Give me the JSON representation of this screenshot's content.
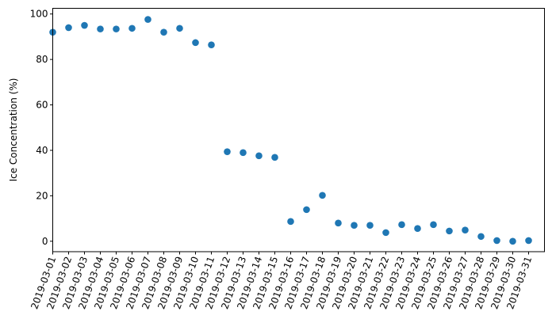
{
  "chart_data": {
    "type": "scatter",
    "title": "",
    "xlabel": "",
    "ylabel": "Ice Concentration (%)",
    "x": [
      "2019-03-01",
      "2019-03-02",
      "2019-03-03",
      "2019-03-04",
      "2019-03-05",
      "2019-03-06",
      "2019-03-07",
      "2019-03-08",
      "2019-03-09",
      "2019-03-10",
      "2019-03-11",
      "2019-03-12",
      "2019-03-13",
      "2019-03-14",
      "2019-03-15",
      "2019-03-16",
      "2019-03-17",
      "2019-03-18",
      "2019-03-19",
      "2019-03-20",
      "2019-03-21",
      "2019-03-22",
      "2019-03-23",
      "2019-03-24",
      "2019-03-25",
      "2019-03-26",
      "2019-03-27",
      "2019-03-28",
      "2019-03-29",
      "2019-03-30",
      "2019-03-31"
    ],
    "y": [
      92.0,
      94.0,
      95.0,
      93.4,
      93.4,
      93.7,
      97.6,
      92.0,
      93.7,
      87.4,
      86.4,
      39.4,
      39.0,
      37.6,
      36.9,
      8.7,
      13.9,
      20.2,
      8.0,
      7.0,
      7.0,
      3.8,
      7.3,
      5.6,
      7.3,
      4.5,
      4.9,
      2.1,
      0.3,
      0.0,
      0.3
    ],
    "xtick_labels": [
      "2019-03-01",
      "2019-03-02",
      "2019-03-03",
      "2019-03-04",
      "2019-03-05",
      "2019-03-06",
      "2019-03-07",
      "2019-03-08",
      "2019-03-09",
      "2019-03-10",
      "2019-03-11",
      "2019-03-12",
      "2019-03-13",
      "2019-03-14",
      "2019-03-15",
      "2019-03-16",
      "2019-03-17",
      "2019-03-18",
      "2019-03-19",
      "2019-03-20",
      "2019-03-21",
      "2019-03-22",
      "2019-03-23",
      "2019-03-24",
      "2019-03-25",
      "2019-03-26",
      "2019-03-27",
      "2019-03-28",
      "2019-03-29",
      "2019-03-30",
      "2019-03-31"
    ],
    "yticks": [
      0,
      20,
      40,
      60,
      80,
      100
    ],
    "ylim": [
      -4.6,
      102.5
    ],
    "xlim": [
      "2019-03-01",
      "2019-04-01"
    ],
    "grid": false,
    "marker_color": "#1f77b4"
  }
}
